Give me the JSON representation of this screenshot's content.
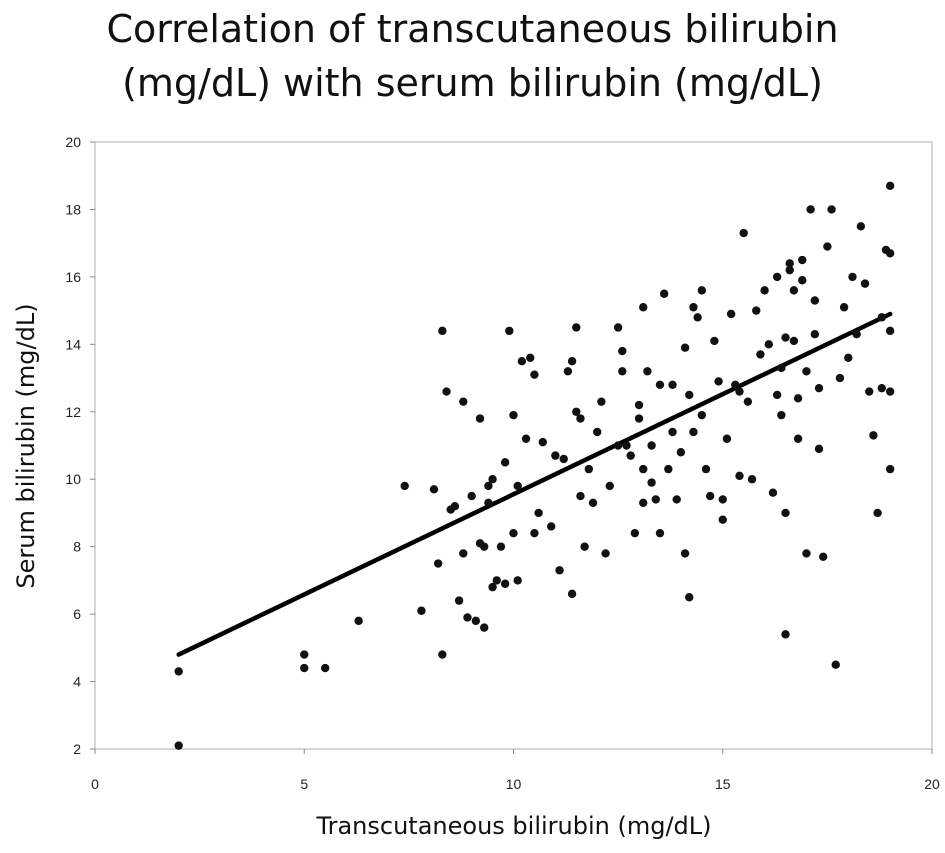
{
  "chart_data": {
    "type": "scatter",
    "title_lines": [
      "Correlation of transcutaneous bilirubin",
      "(mg/dL) with serum bilirubin (mg/dL)"
    ],
    "xlabel": "Transcutaneous bilirubin (mg/dL)",
    "ylabel": "Serum bilirubin (mg/dL)",
    "xlim": [
      0,
      20
    ],
    "ylim": [
      2,
      20
    ],
    "xticks": [
      "0",
      "5",
      "10",
      "15",
      "20"
    ],
    "yticks": [
      "2",
      "4",
      "6",
      "8",
      "10",
      "12",
      "14",
      "16",
      "18",
      "20"
    ],
    "grid": false,
    "colors": {
      "points": "#111111",
      "trend_line": "#000000",
      "frame": "#c8c8c8"
    },
    "trend_line": {
      "x": [
        2,
        19
      ],
      "y": [
        4.8,
        14.9
      ]
    },
    "points": [
      [
        2.0,
        4.3
      ],
      [
        2.0,
        2.1
      ],
      [
        5.0,
        4.8
      ],
      [
        5.0,
        4.4
      ],
      [
        5.5,
        4.4
      ],
      [
        6.3,
        5.8
      ],
      [
        7.4,
        9.8
      ],
      [
        7.8,
        6.1
      ],
      [
        8.1,
        9.7
      ],
      [
        8.2,
        7.5
      ],
      [
        8.3,
        4.8
      ],
      [
        8.3,
        14.4
      ],
      [
        8.4,
        12.6
      ],
      [
        8.5,
        9.1
      ],
      [
        8.6,
        9.2
      ],
      [
        8.7,
        6.4
      ],
      [
        8.8,
        12.3
      ],
      [
        8.8,
        7.8
      ],
      [
        8.9,
        5.9
      ],
      [
        9.0,
        9.5
      ],
      [
        9.1,
        5.8
      ],
      [
        9.2,
        8.1
      ],
      [
        9.2,
        11.8
      ],
      [
        9.3,
        8.0
      ],
      [
        9.3,
        5.6
      ],
      [
        9.4,
        9.3
      ],
      [
        9.4,
        9.8
      ],
      [
        9.5,
        10.0
      ],
      [
        9.5,
        6.8
      ],
      [
        9.6,
        7.0
      ],
      [
        9.7,
        8.0
      ],
      [
        9.8,
        6.9
      ],
      [
        9.8,
        10.5
      ],
      [
        9.9,
        14.4
      ],
      [
        10.0,
        11.9
      ],
      [
        10.0,
        8.4
      ],
      [
        10.1,
        7.0
      ],
      [
        10.1,
        9.8
      ],
      [
        10.2,
        13.5
      ],
      [
        10.3,
        11.2
      ],
      [
        10.4,
        13.6
      ],
      [
        10.5,
        13.1
      ],
      [
        10.5,
        8.4
      ],
      [
        10.6,
        9.0
      ],
      [
        10.7,
        11.1
      ],
      [
        10.9,
        8.6
      ],
      [
        11.0,
        10.7
      ],
      [
        11.1,
        7.3
      ],
      [
        11.2,
        10.6
      ],
      [
        11.3,
        13.2
      ],
      [
        11.4,
        13.5
      ],
      [
        11.4,
        6.6
      ],
      [
        11.5,
        14.5
      ],
      [
        11.5,
        12.0
      ],
      [
        11.6,
        11.8
      ],
      [
        11.6,
        9.5
      ],
      [
        11.7,
        8.0
      ],
      [
        11.8,
        10.3
      ],
      [
        11.9,
        9.3
      ],
      [
        12.0,
        11.4
      ],
      [
        12.1,
        12.3
      ],
      [
        12.2,
        7.8
      ],
      [
        12.3,
        9.8
      ],
      [
        12.5,
        11.0
      ],
      [
        12.5,
        14.5
      ],
      [
        12.6,
        13.8
      ],
      [
        12.6,
        13.2
      ],
      [
        12.7,
        11.0
      ],
      [
        12.8,
        10.7
      ],
      [
        12.9,
        8.4
      ],
      [
        13.0,
        11.8
      ],
      [
        13.0,
        12.2
      ],
      [
        13.1,
        9.3
      ],
      [
        13.1,
        10.3
      ],
      [
        13.1,
        15.1
      ],
      [
        13.2,
        13.2
      ],
      [
        13.3,
        11.0
      ],
      [
        13.3,
        9.9
      ],
      [
        13.4,
        9.4
      ],
      [
        13.5,
        8.4
      ],
      [
        13.5,
        12.8
      ],
      [
        13.6,
        15.5
      ],
      [
        13.7,
        10.3
      ],
      [
        13.8,
        11.4
      ],
      [
        13.8,
        12.8
      ],
      [
        13.9,
        9.4
      ],
      [
        14.0,
        10.8
      ],
      [
        14.1,
        13.9
      ],
      [
        14.1,
        7.8
      ],
      [
        14.2,
        12.5
      ],
      [
        14.2,
        6.5
      ],
      [
        14.3,
        11.4
      ],
      [
        14.3,
        15.1
      ],
      [
        14.4,
        14.8
      ],
      [
        14.5,
        15.6
      ],
      [
        14.5,
        11.9
      ],
      [
        14.6,
        10.3
      ],
      [
        14.7,
        9.5
      ],
      [
        14.8,
        14.1
      ],
      [
        14.9,
        12.9
      ],
      [
        15.0,
        8.8
      ],
      [
        15.0,
        9.4
      ],
      [
        15.1,
        11.2
      ],
      [
        15.2,
        14.9
      ],
      [
        15.3,
        12.8
      ],
      [
        15.4,
        12.6
      ],
      [
        15.4,
        10.1
      ],
      [
        15.5,
        17.3
      ],
      [
        15.6,
        12.3
      ],
      [
        15.7,
        10.0
      ],
      [
        15.8,
        15.0
      ],
      [
        15.9,
        13.7
      ],
      [
        16.0,
        15.6
      ],
      [
        16.1,
        14.0
      ],
      [
        16.2,
        9.6
      ],
      [
        16.3,
        16.0
      ],
      [
        16.3,
        12.5
      ],
      [
        16.4,
        13.3
      ],
      [
        16.4,
        11.9
      ],
      [
        16.5,
        14.2
      ],
      [
        16.5,
        9.0
      ],
      [
        16.5,
        5.4
      ],
      [
        16.6,
        16.4
      ],
      [
        16.6,
        16.2
      ],
      [
        16.7,
        15.6
      ],
      [
        16.7,
        14.1
      ],
      [
        16.8,
        11.2
      ],
      [
        16.8,
        12.4
      ],
      [
        16.9,
        16.5
      ],
      [
        16.9,
        15.9
      ],
      [
        17.0,
        7.8
      ],
      [
        17.0,
        13.2
      ],
      [
        17.1,
        18.0
      ],
      [
        17.2,
        15.3
      ],
      [
        17.2,
        14.3
      ],
      [
        17.3,
        12.7
      ],
      [
        17.3,
        10.9
      ],
      [
        17.4,
        7.7
      ],
      [
        17.5,
        16.9
      ],
      [
        17.6,
        18.0
      ],
      [
        17.7,
        4.5
      ],
      [
        17.8,
        13.0
      ],
      [
        17.9,
        15.1
      ],
      [
        18.0,
        13.6
      ],
      [
        18.1,
        16.0
      ],
      [
        18.2,
        14.3
      ],
      [
        18.3,
        17.5
      ],
      [
        18.4,
        15.8
      ],
      [
        18.5,
        12.6
      ],
      [
        18.6,
        11.3
      ],
      [
        18.7,
        9.0
      ],
      [
        18.8,
        12.7
      ],
      [
        18.8,
        14.8
      ],
      [
        18.9,
        16.8
      ],
      [
        19.0,
        18.7
      ],
      [
        19.0,
        16.7
      ],
      [
        19.0,
        14.4
      ],
      [
        19.0,
        12.6
      ],
      [
        19.0,
        10.3
      ]
    ]
  }
}
